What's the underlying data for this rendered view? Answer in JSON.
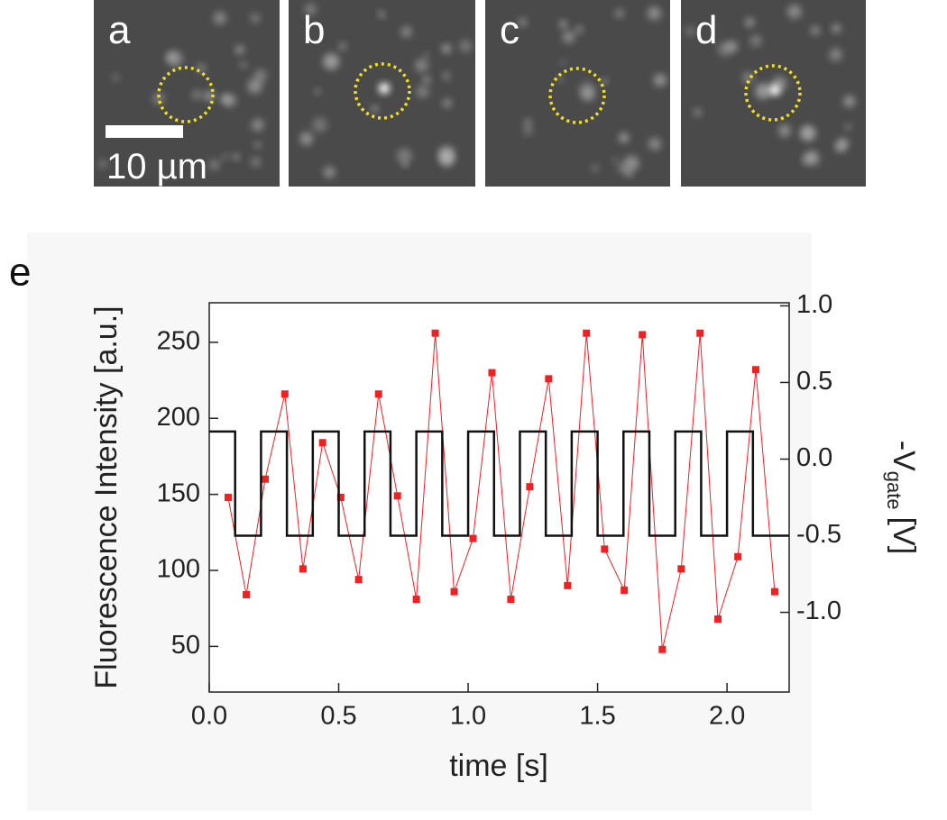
{
  "panels": [
    {
      "label": "a"
    },
    {
      "label": "b"
    },
    {
      "label": "c"
    },
    {
      "label": "d"
    }
  ],
  "scale_bar": "10 µm",
  "chart_data": {
    "type": "line",
    "panel_label": "e",
    "xlabel": "time [s]",
    "ylabel": "Fluorescence Intensity [a.u.]",
    "y2label_parts": [
      "-V",
      "gate",
      "[V]"
    ],
    "xlim": [
      0,
      2.24
    ],
    "ylim": [
      20,
      276
    ],
    "y2lim": [
      -1.52,
      1.02
    ],
    "xticks": [
      {
        "value": 0,
        "label": "0.0"
      },
      0.5,
      {
        "value": 1,
        "label": "1.0"
      },
      1.5,
      {
        "value": 2,
        "label": "2.0"
      }
    ],
    "yticks": [
      50,
      100,
      150,
      200,
      250
    ],
    "y2ticks": [
      {
        "value": 1,
        "label": "1.0"
      },
      0.5,
      {
        "value": 0,
        "label": "0.0"
      },
      -0.5,
      {
        "value": -1,
        "label": "-1.0"
      }
    ],
    "series": [
      {
        "color": "#ee2222",
        "marker": "square",
        "x": [
          0.073,
          0.143,
          0.216,
          0.292,
          0.362,
          0.438,
          0.508,
          0.577,
          0.654,
          0.727,
          0.8,
          0.873,
          0.946,
          1.019,
          1.092,
          1.165,
          1.238,
          1.311,
          1.384,
          1.457,
          1.527,
          1.603,
          1.673,
          1.75,
          1.823,
          1.896,
          1.965,
          2.042,
          2.111,
          2.184
        ],
        "values": [
          148,
          84,
          160,
          216,
          101,
          184,
          148,
          94,
          216,
          149,
          81,
          256,
          86,
          121,
          230,
          81,
          155,
          226,
          90,
          256,
          114,
          87,
          255,
          48,
          101,
          256,
          68,
          109,
          232,
          86
        ]
      },
      {
        "color": "#111111",
        "axis": "y2",
        "marker": "none",
        "x": [
          0,
          0.1,
          0.1,
          0.2,
          0.2,
          0.3,
          0.3,
          0.4,
          0.4,
          0.5,
          0.5,
          0.6,
          0.6,
          0.7,
          0.7,
          0.8,
          0.8,
          0.9,
          0.9,
          1.0,
          1.0,
          1.1,
          1.1,
          1.2,
          1.2,
          1.3,
          1.3,
          1.4,
          1.4,
          1.5,
          1.5,
          1.6,
          1.6,
          1.7,
          1.7,
          1.8,
          1.8,
          1.9,
          1.9,
          2.0,
          2.0,
          2.1,
          2.1,
          2.24
        ],
        "values": [
          0.18,
          0.18,
          -0.5,
          -0.5,
          0.18,
          0.18,
          -0.5,
          -0.5,
          0.18,
          0.18,
          -0.5,
          -0.5,
          0.18,
          0.18,
          -0.5,
          -0.5,
          0.18,
          0.18,
          -0.5,
          -0.5,
          0.18,
          0.18,
          -0.5,
          -0.5,
          0.18,
          0.18,
          -0.5,
          -0.5,
          0.18,
          0.18,
          -0.5,
          -0.5,
          0.18,
          0.18,
          -0.5,
          -0.5,
          0.18,
          0.18,
          -0.5,
          -0.5,
          0.18,
          0.18,
          -0.5,
          -0.5
        ]
      }
    ]
  }
}
